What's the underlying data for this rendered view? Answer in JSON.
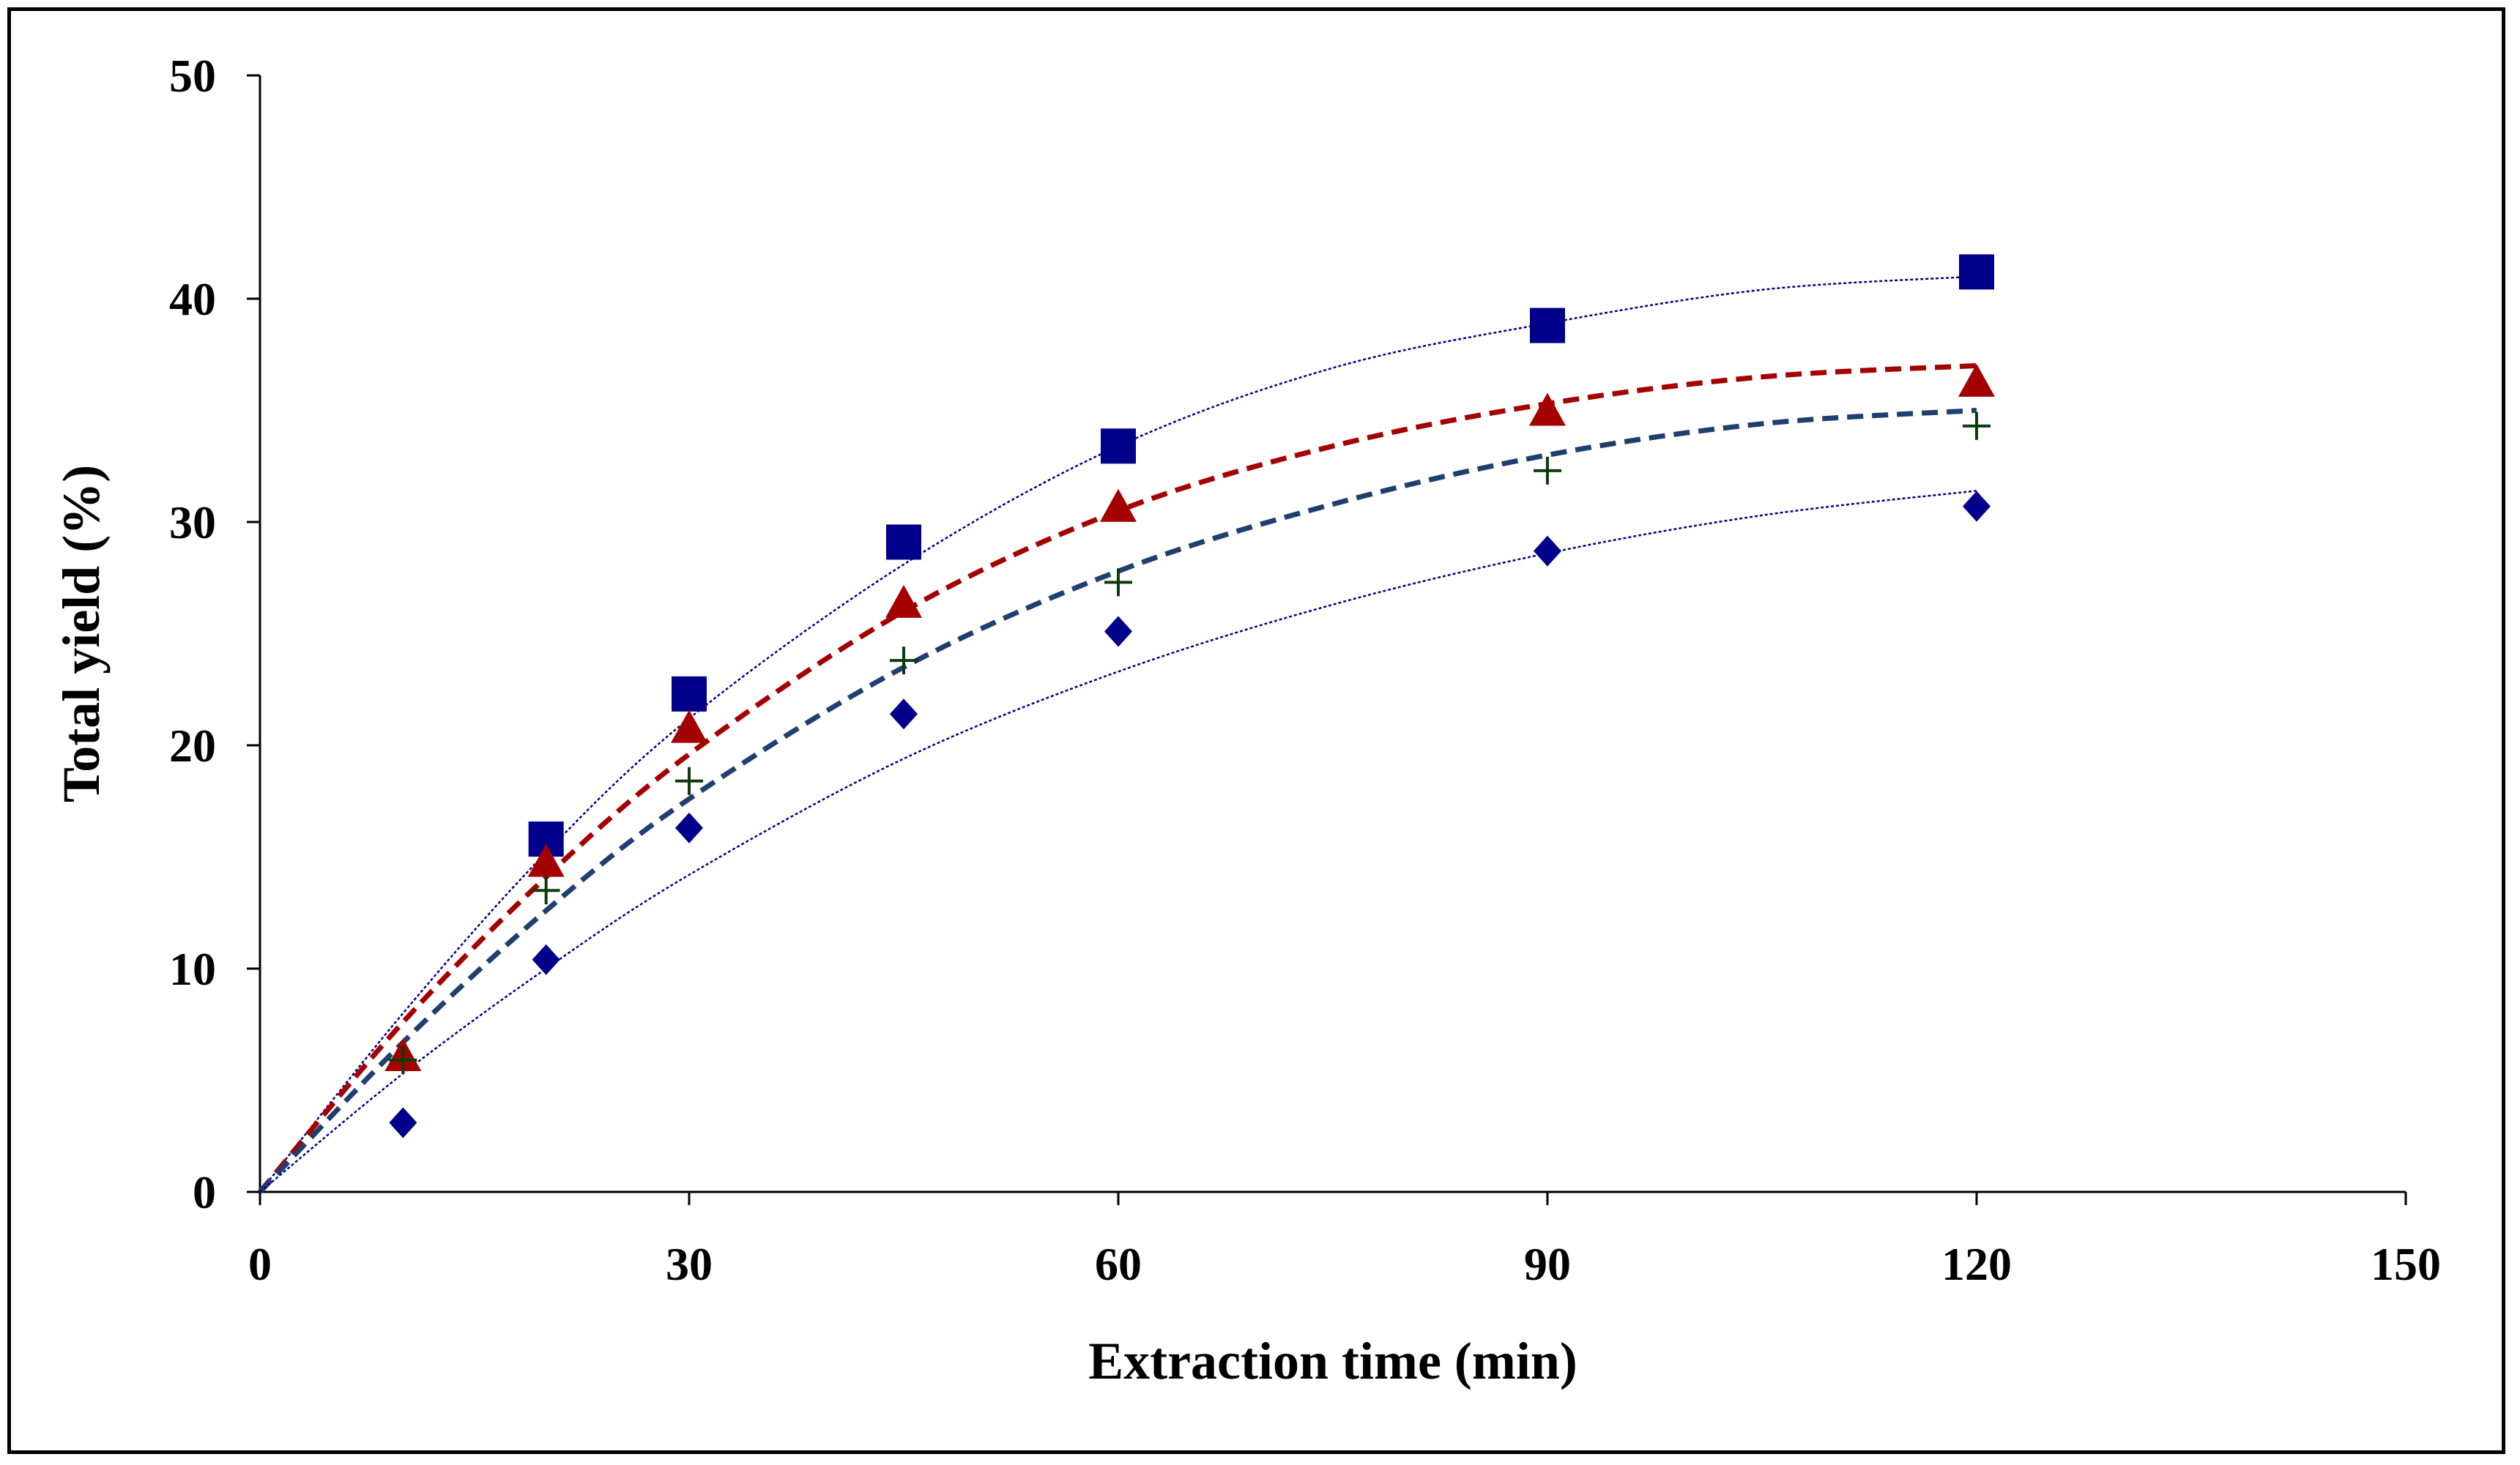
{
  "chart_data": {
    "type": "scatter",
    "title": "",
    "xlabel": "Extraction time (min)",
    "ylabel": "Total yield (%)",
    "xlim": [
      0,
      150
    ],
    "ylim": [
      0,
      50
    ],
    "xticks": [
      0,
      30,
      60,
      90,
      120,
      150
    ],
    "yticks": [
      0,
      10,
      20,
      30,
      40,
      50
    ],
    "grid": false,
    "legend": "none",
    "series": [
      {
        "name": "square series",
        "marker": "square",
        "color": "#00008B",
        "x": [
          20,
          30,
          45,
          60,
          90,
          120
        ],
        "y": [
          15.8,
          22.3,
          29.1,
          33.4,
          38.8,
          41.2
        ]
      },
      {
        "name": "triangle series",
        "marker": "triangle",
        "color": "#A50000",
        "x": [
          10,
          20,
          30,
          45,
          60,
          90,
          120
        ],
        "y": [
          6.0,
          14.7,
          20.7,
          26.3,
          30.6,
          34.9,
          36.2
        ]
      },
      {
        "name": "plus series",
        "marker": "plus",
        "color": "#0B3D0B",
        "x": [
          10,
          20,
          30,
          45,
          60,
          90,
          120
        ],
        "y": [
          5.9,
          13.5,
          18.4,
          23.8,
          27.3,
          32.3,
          34.3
        ]
      },
      {
        "name": "diamond series",
        "marker": "diamond",
        "color": "#00008B",
        "x": [
          10,
          20,
          30,
          45,
          60,
          90,
          120
        ],
        "y": [
          3.1,
          10.4,
          16.3,
          21.4,
          25.1,
          28.7,
          30.7
        ]
      }
    ],
    "fits": [
      {
        "name": "square fit",
        "style": "dotted",
        "color": "#00008B",
        "x": [
          0,
          10,
          20,
          30,
          45,
          60,
          75,
          90,
          105,
          120
        ],
        "y": [
          0,
          8.0,
          15.2,
          21.2,
          28.1,
          33.4,
          36.9,
          38.9,
          40.4,
          41.0
        ]
      },
      {
        "name": "triangle fit",
        "style": "dashed",
        "color": "#A50000",
        "x": [
          0,
          10,
          20,
          30,
          45,
          60,
          75,
          90,
          105,
          120
        ],
        "y": [
          0,
          7.6,
          14.1,
          19.6,
          26.0,
          30.5,
          33.4,
          35.3,
          36.5,
          37.0
        ]
      },
      {
        "name": "plus fit",
        "style": "dashed",
        "color": "#1F3F6F",
        "x": [
          0,
          10,
          20,
          30,
          45,
          60,
          75,
          90,
          105,
          120
        ],
        "y": [
          0,
          6.7,
          12.6,
          17.6,
          23.5,
          27.8,
          30.8,
          33.0,
          34.4,
          35.0
        ]
      },
      {
        "name": "diamond fit",
        "style": "dotted",
        "color": "#00008B",
        "x": [
          0,
          10,
          20,
          30,
          45,
          60,
          75,
          90,
          105,
          120
        ],
        "y": [
          0,
          5.3,
          10.0,
          14.2,
          19.4,
          23.3,
          26.3,
          28.6,
          30.3,
          31.4
        ]
      }
    ]
  }
}
